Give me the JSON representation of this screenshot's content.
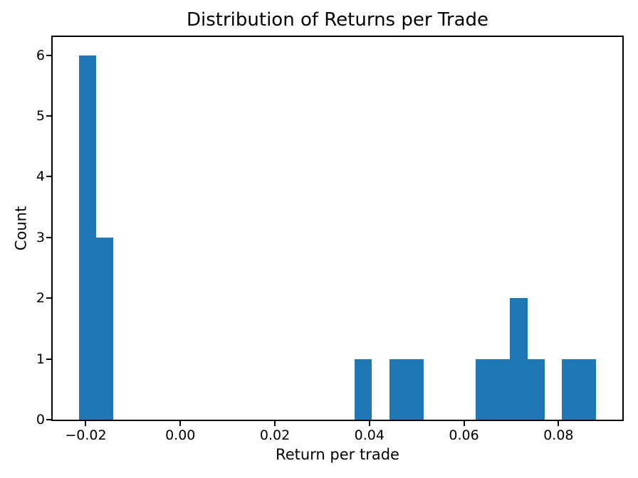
{
  "chart_data": {
    "type": "bar",
    "variant": "histogram",
    "title": "Distribution of Returns per Trade",
    "xlabel": "Return per trade",
    "ylabel": "Count",
    "bar_color": "#1f77b4",
    "axis_color": "#000000",
    "background_color": "#ffffff",
    "grid": false,
    "legend": "none",
    "xlim": [
      -0.027,
      0.0935
    ],
    "ylim": [
      0,
      6.3
    ],
    "bins": {
      "start": -0.0215,
      "width": 0.00365,
      "n": 30
    },
    "counts": [
      6,
      3,
      0,
      0,
      0,
      0,
      0,
      0,
      0,
      0,
      0,
      0,
      0,
      0,
      0,
      0,
      1,
      0,
      1,
      1,
      0,
      0,
      0,
      1,
      1,
      2,
      1,
      0,
      1,
      1
    ],
    "xticks": {
      "values": [
        -0.02,
        0.0,
        0.02,
        0.04,
        0.06,
        0.08
      ],
      "labels": [
        "−0.02",
        "0.00",
        "0.02",
        "0.04",
        "0.06",
        "0.08"
      ]
    },
    "yticks": {
      "values": [
        0,
        1,
        2,
        3,
        4,
        5,
        6
      ],
      "labels": [
        "0",
        "1",
        "2",
        "3",
        "4",
        "5",
        "6"
      ]
    }
  }
}
